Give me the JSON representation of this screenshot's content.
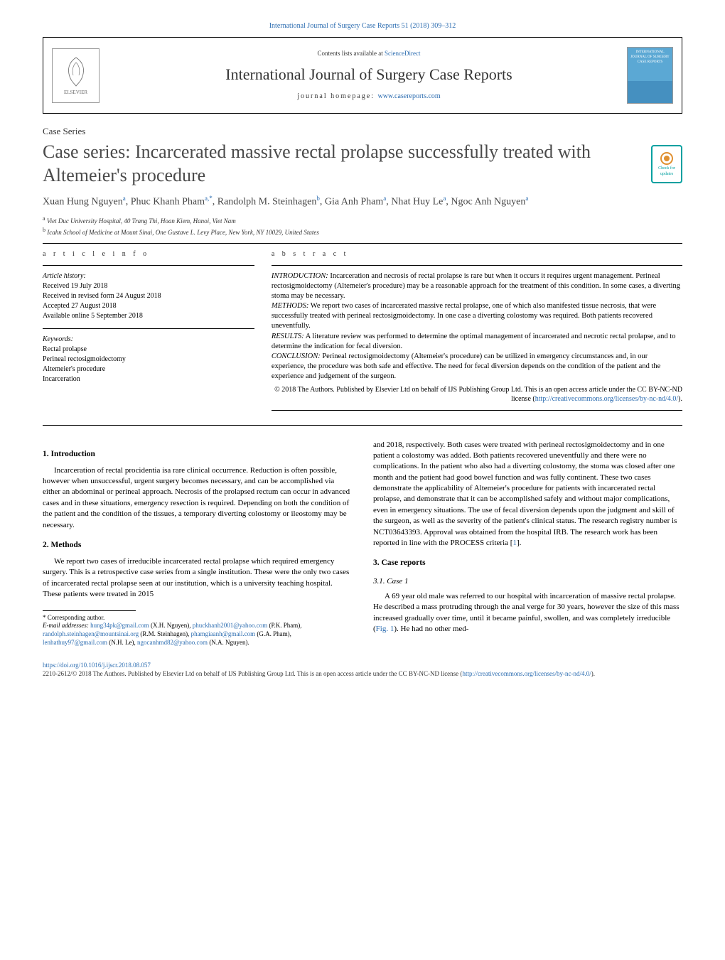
{
  "colors": {
    "link": "#2b6cb0",
    "text": "#000000",
    "title_gray": "#4a4a4a",
    "cover_blue": "#5ba8d4",
    "crossmark": "#00a0a0"
  },
  "journal_ref": "International Journal of Surgery Case Reports 51 (2018) 309–312",
  "header": {
    "contents_prefix": "Contents lists available at ",
    "contents_link": "ScienceDirect",
    "journal_title": "International Journal of Surgery Case Reports",
    "homepage_prefix": "journal homepage: ",
    "homepage_link": "www.casereports.com",
    "elsevier_label": "ELSEVIER",
    "cover_text": "INTERNATIONAL JOURNAL OF SURGERY CASE REPORTS"
  },
  "crossmark": {
    "line1": "Check for",
    "line2": "updates"
  },
  "article_type": "Case Series",
  "article_title": "Case series: Incarcerated massive rectal prolapse successfully treated with Altemeier's procedure",
  "authors_html": "Xuan Hung Nguyen<sup>a</sup>, Phuc Khanh Pham<sup>a,*</sup>, Randolph M. Steinhagen<sup>b</sup>, Gia Anh Pham<sup>a</sup>, Nhat Huy Le<sup>a</sup>, Ngoc Anh Nguyen<sup>a</sup>",
  "affiliations": [
    {
      "ref": "a",
      "text": "Viet Duc University Hospital, 40 Trang Thi, Hoan Kiem, Hanoi, Viet Nam"
    },
    {
      "ref": "b",
      "text": "Icahn School of Medicine at Mount Sinai, One Gustave L. Levy Place, New York, NY 10029, United States"
    }
  ],
  "info": {
    "head": "a r t i c l e   i n f o",
    "history_label": "Article history:",
    "history": [
      "Received 19 July 2018",
      "Received in revised form 24 August 2018",
      "Accepted 27 August 2018",
      "Available online 5 September 2018"
    ],
    "keywords_label": "Keywords:",
    "keywords": [
      "Rectal prolapse",
      "Perineal rectosigmoidectomy",
      "Altemeier's procedure",
      "Incarceration"
    ]
  },
  "abstract": {
    "head": "a b s t r a c t",
    "intro_label": "INTRODUCTION:",
    "intro": " Incarceration and necrosis of rectal prolapse is rare but when it occurs it requires urgent management. Perineal rectosigmoidectomy (Altemeier's procedure) may be a reasonable approach for the treatment of this condition. In some cases, a diverting stoma may be necessary.",
    "methods_label": "METHODS:",
    "methods": " We report two cases of incarcerated massive rectal prolapse, one of which also manifested tissue necrosis, that were successfully treated with perineal rectosigmoidectomy. In one case a diverting colostomy was required. Both patients recovered uneventfully.",
    "results_label": "RESULTS:",
    "results": " A literature review was performed to determine the optimal management of incarcerated and necrotic rectal prolapse, and to determine the indication for fecal diversion.",
    "conclusion_label": "CONCLUSION:",
    "conclusion": " Perineal rectosigmoidectomy (Altemeier's procedure) can be utilized in emergency circumstances and, in our experience, the procedure was both safe and effective. The need for fecal diversion depends on the condition of the patient and the experience and judgement of the surgeon.",
    "copyright_line": "© 2018 The Authors. Published by Elsevier Ltd on behalf of IJS Publishing Group Ltd. This is an open access article under the CC BY-NC-ND license (",
    "cc_link": "http://creativecommons.org/licenses/by-nc-nd/4.0/",
    "copyright_suffix": ")."
  },
  "sections": {
    "intro_head": "1.  Introduction",
    "intro_para": "Incarceration of rectal procidentia isa rare clinical occurrence. Reduction is often possible, however when unsuccessful, urgent surgery becomes necessary, and can be accomplished via either an abdominal or perineal approach. Necrosis of the prolapsed rectum can occur in advanced cases and in these situations, emergency resection is required. Depending on both the condition of the patient and the condition of the tissues, a temporary diverting colostomy or ileostomy may be necessary.",
    "methods_head": "2.  Methods",
    "methods_para": "We report two cases of irreducible incarcerated rectal prolapse which required emergency surgery. This is a retrospective case series from a single institution. These were the only two cases of incarcerated rectal prolapse seen at our institution, which is a university teaching hospital. These patients were treated in 2015",
    "col2_continuation": "and 2018, respectively. Both cases were treated with perineal rectosigmoidectomy and in one patient a colostomy was added. Both patients recovered uneventfully and there were no complications. In the patient who also had a diverting colostomy, the stoma was closed after one month and the patient had good bowel function and was fully continent. These two cases demonstrate the applicability of Altemeier's procedure for patients with incarcerated rectal prolapse, and demonstrate that it can be accomplished safely and without major complications, even in emergency situations. The use of fecal diversion depends upon the judgment and skill of the surgeon, as well as the severity of the patient's clinical status. The research registry number is NCT03643393. Approval was obtained from the hospital IRB. The research work has been reported in line with the PROCESS criteria [",
    "ref1": "1",
    "col2_after_ref": "].",
    "cases_head": "3.  Case reports",
    "case1_head": "3.1.  Case 1",
    "case1_para": "A 69 year old male was referred to our hospital with incarceration of massive rectal prolapse. He described a mass protruding through the anal verge for 30 years, however the size of this mass increased gradually over time, until it became painful, swollen, and was completely irreducible (",
    "fig1": "Fig. 1",
    "case1_after_fig": "). He had no other med-"
  },
  "footnote": {
    "corr": "* Corresponding author.",
    "email_prefix": "E-mail addresses: ",
    "emails": [
      {
        "addr": "hung34pk@gmail.com",
        "who": "(X.H. Nguyen),"
      },
      {
        "addr": "phuckhanh2001@yahoo.com",
        "who": "(P.K. Pham),"
      },
      {
        "addr": "randolph.steinhagen@mountsinai.org",
        "who": "(R.M. Steinhagen),"
      },
      {
        "addr": "phamgiaanh@gmail.com",
        "who": "(G.A. Pham),"
      },
      {
        "addr": "lenhathuy97@gmail.com",
        "who": "(N.H. Le),"
      },
      {
        "addr": "ngocanhmd82@yahoo.com",
        "who": "(N.A. Nguyen)."
      }
    ]
  },
  "bottom": {
    "doi": "https://doi.org/10.1016/j.ijscr.2018.08.057",
    "copy_line": "2210-2612/© 2018 The Authors. Published by Elsevier Ltd on behalf of IJS Publishing Group Ltd. This is an open access article under the CC BY-NC-ND license (",
    "cc_link": "http://creativecommons.org/licenses/by-nc-nd/4.0/",
    "copy_suffix": ")."
  }
}
